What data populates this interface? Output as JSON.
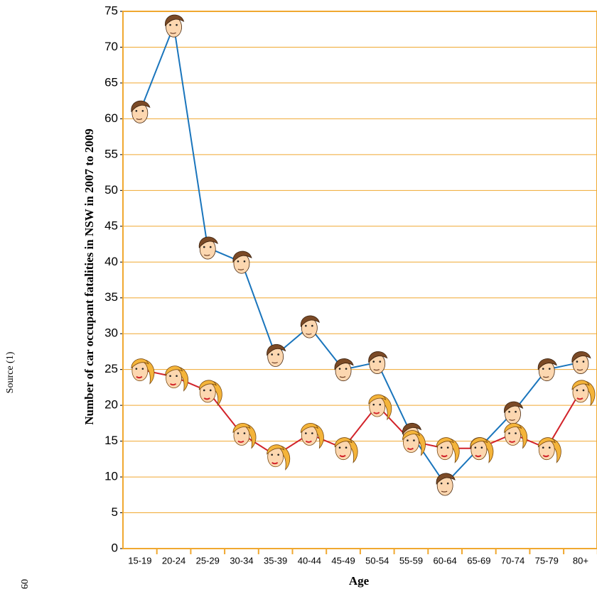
{
  "chart_data": {
    "type": "line",
    "y_label": "Number of car occupant fatalities in NSW in 2007 to 2009",
    "x_label": "Age",
    "annotations": [
      "Source (1)",
      "09"
    ],
    "categories": [
      "15-19",
      "20-24",
      "25-29",
      "30-34",
      "35-39",
      "40-44",
      "45-49",
      "50-54",
      "55-59",
      "60-64",
      "65-69",
      "70-74",
      "75-79",
      "80+"
    ],
    "series": [
      {
        "color": "#1a75bc",
        "marker": "male",
        "values": [
          61,
          73,
          42,
          40,
          27,
          31,
          25,
          26,
          16,
          9,
          14,
          19,
          25,
          26
        ]
      },
      {
        "color": "#d2232a",
        "marker": "female",
        "values": [
          25,
          24,
          22,
          16,
          13,
          16,
          14,
          20,
          15,
          14,
          14,
          16,
          14,
          22
        ]
      }
    ],
    "ylim": [
      0,
      75
    ],
    "yticks": [
      0,
      5,
      10,
      15,
      20,
      25,
      30,
      35,
      40,
      45,
      50,
      55,
      60,
      65,
      70,
      75
    ],
    "grid": true,
    "grid_color": "#f0a830"
  }
}
